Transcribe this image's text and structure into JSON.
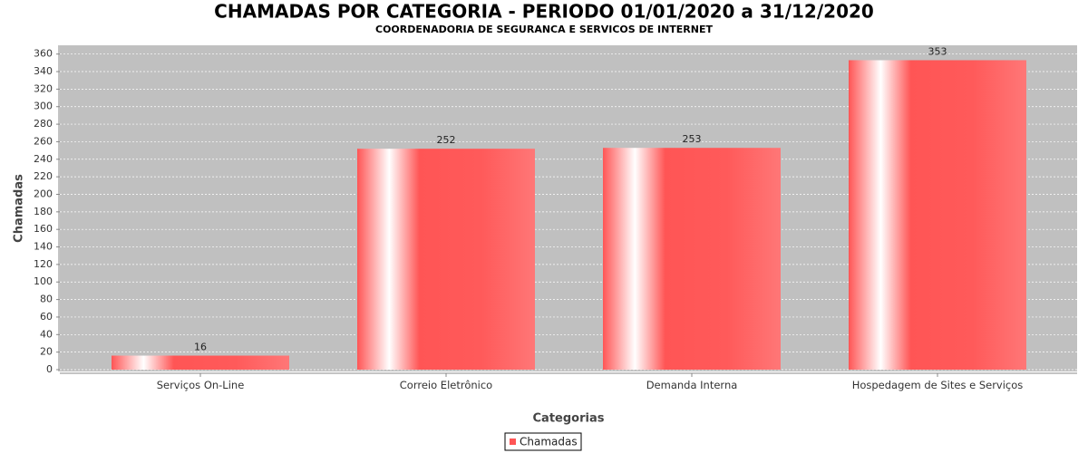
{
  "chart_data": {
    "type": "bar",
    "title": "CHAMADAS POR CATEGORIA - PERIODO 01/01/2020 a 31/12/2020",
    "subtitle": "COORDENADORIA DE SEGURANCA E SERVICOS DE INTERNET",
    "x_label": "Categorias",
    "y_label": "Chamadas",
    "categories": [
      "Serviços On-Line",
      "Correio Eletrônico",
      "Demanda Interna",
      "Hospedagem de Sites e Serviços"
    ],
    "series": [
      {
        "name": "Chamadas",
        "color": "#ff5555",
        "values": [
          16,
          252,
          253,
          353
        ]
      }
    ],
    "ylim": [
      0,
      370
    ],
    "yticks": [
      0,
      20,
      40,
      60,
      80,
      100,
      120,
      140,
      160,
      180,
      200,
      220,
      240,
      260,
      280,
      300,
      320,
      340,
      360
    ],
    "grid": true,
    "legend": "bottom"
  }
}
